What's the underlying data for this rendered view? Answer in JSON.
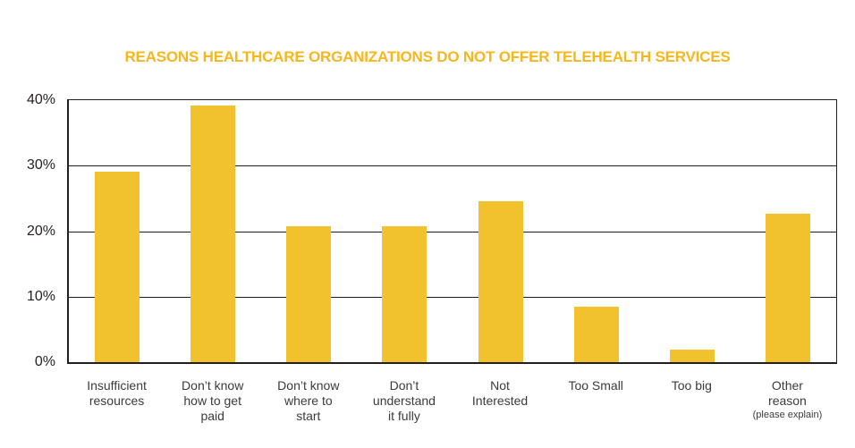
{
  "chart_data": {
    "type": "bar",
    "title": "REASONS HEALTHCARE ORGANIZATIONS DO NOT OFFER TELEHEALTH SERVICES",
    "categories": [
      {
        "label": "Insufficient resources",
        "lines": [
          "Insufficient",
          "resources"
        ]
      },
      {
        "label": "Don’t know how to get paid",
        "lines": [
          "Don’t know",
          "how to get",
          "paid"
        ]
      },
      {
        "label": "Don’t know where to start",
        "lines": [
          "Don’t know",
          "where to",
          "start"
        ]
      },
      {
        "label": "Don’t understand it fully",
        "lines": [
          "Don’t",
          "understand",
          "it fully"
        ]
      },
      {
        "label": "Not Interested",
        "lines": [
          "Not",
          "Interested"
        ]
      },
      {
        "label": "Too Small",
        "lines": [
          "Too Small"
        ]
      },
      {
        "label": "Too big",
        "lines": [
          "Too big"
        ]
      },
      {
        "label": "Other reason",
        "lines": [
          "Other",
          "reason"
        ],
        "sublabel": "(please explain)"
      }
    ],
    "values": [
      29.1,
      39.2,
      20.8,
      20.8,
      24.6,
      8.5,
      1.9,
      22.7
    ],
    "ylabel": "",
    "xlabel": "",
    "ylim": [
      0,
      40
    ],
    "y_ticks": [
      0,
      10,
      20,
      30,
      40
    ],
    "y_tick_labels": [
      "0%",
      "10%",
      "20%",
      "30%",
      "40%"
    ],
    "grid": true,
    "legend": false,
    "bar_color": "#F2C22E",
    "title_color": "#F6B71D",
    "axis_color": "#231F20",
    "label_color": "#3B3B3B",
    "background_color": "#FFFFFF"
  }
}
